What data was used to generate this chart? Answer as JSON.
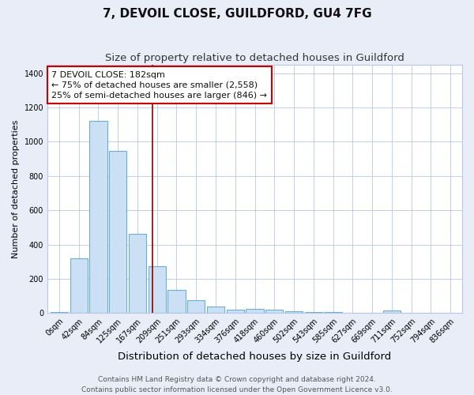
{
  "title": "7, DEVOIL CLOSE, GUILDFORD, GU4 7FG",
  "subtitle": "Size of property relative to detached houses in Guildford",
  "xlabel": "Distribution of detached houses by size in Guildford",
  "ylabel": "Number of detached properties",
  "footer1": "Contains HM Land Registry data © Crown copyright and database right 2024.",
  "footer2": "Contains public sector information licensed under the Open Government Licence v3.0.",
  "categories": [
    "0sqm",
    "42sqm",
    "84sqm",
    "125sqm",
    "167sqm",
    "209sqm",
    "251sqm",
    "293sqm",
    "334sqm",
    "376sqm",
    "418sqm",
    "460sqm",
    "502sqm",
    "543sqm",
    "585sqm",
    "627sqm",
    "669sqm",
    "711sqm",
    "752sqm",
    "794sqm",
    "836sqm"
  ],
  "values": [
    5,
    320,
    1120,
    945,
    460,
    275,
    135,
    75,
    40,
    20,
    25,
    20,
    10,
    8,
    5,
    3,
    2,
    15,
    2,
    2,
    2
  ],
  "bar_color": "#cce0f5",
  "bar_edge_color": "#6aaed6",
  "ylim": [
    0,
    1450
  ],
  "yticks": [
    0,
    200,
    400,
    600,
    800,
    1000,
    1200,
    1400
  ],
  "vline_x": 4.75,
  "vline_color": "#8b0000",
  "annotation_text": "7 DEVOIL CLOSE: 182sqm\n← 75% of detached houses are smaller (2,558)\n25% of semi-detached houses are larger (846) →",
  "background_color": "#e8edf8",
  "plot_bg_color": "#ffffff",
  "grid_color": "#b8c8e8",
  "title_fontsize": 11,
  "subtitle_fontsize": 9.5,
  "xlabel_fontsize": 9.5,
  "ylabel_fontsize": 8,
  "tick_fontsize": 7,
  "annotation_fontsize": 8,
  "footer_fontsize": 6.5
}
